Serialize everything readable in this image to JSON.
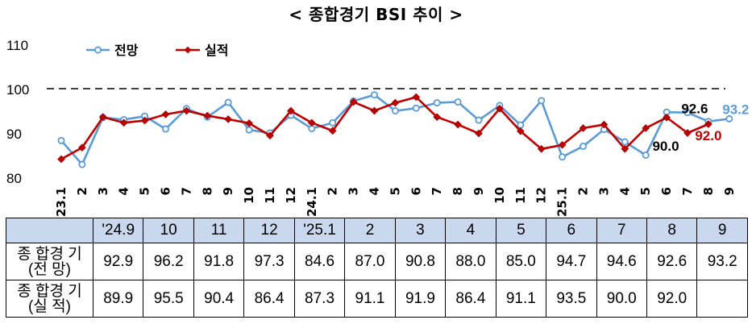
{
  "title": "< 종합경기 BSI 추이 >",
  "chart_data": {
    "type": "line",
    "ylim": [
      80,
      110
    ],
    "yticks": [
      80,
      90,
      100,
      110
    ],
    "reference_line": 100,
    "x_labels": [
      "'23.1",
      "2",
      "3",
      "4",
      "5",
      "6",
      "7",
      "8",
      "9",
      "10",
      "11",
      "12",
      "24.1",
      "2",
      "3",
      "4",
      "5",
      "6",
      "7",
      "8",
      "9",
      "10",
      "11",
      "12",
      "25.1",
      "2",
      "3",
      "4",
      "5",
      "6",
      "7",
      "8",
      "9"
    ],
    "series": [
      {
        "name": "전망",
        "color": "#5b9bd5",
        "values": [
          88.3,
          82.9,
          93.5,
          93.0,
          93.8,
          90.9,
          95.5,
          93.6,
          96.9,
          90.7,
          90.0,
          94.0,
          91.0,
          92.3,
          97.2,
          98.6,
          95.0,
          95.6,
          96.8,
          97.0,
          92.9,
          96.2,
          91.8,
          97.3,
          84.6,
          87.0,
          90.8,
          88.0,
          85.0,
          94.7,
          94.6,
          92.6,
          93.2
        ]
      },
      {
        "name": "실적",
        "color": "#c00000",
        "values": [
          84.1,
          86.7,
          93.6,
          92.3,
          92.8,
          94.2,
          95.0,
          93.9,
          93.1,
          92.2,
          89.4,
          95.0,
          92.3,
          90.5,
          97.0,
          95.0,
          96.8,
          98.1,
          93.6,
          91.9,
          89.9,
          95.5,
          90.4,
          86.4,
          87.3,
          91.1,
          91.9,
          86.4,
          91.1,
          93.5,
          90.0,
          92.0
        ]
      }
    ],
    "annotations": [
      {
        "text": "92.6",
        "series": 0,
        "index": 31
      },
      {
        "text": "93.2",
        "series": 0,
        "index": 32
      },
      {
        "text": "90.0",
        "series": 1,
        "index": 30
      },
      {
        "text": "92.0",
        "series": 1,
        "index": 31
      }
    ]
  },
  "table": {
    "headers": [
      "'24.9",
      "10",
      "11",
      "12",
      "'25.1",
      "2",
      "3",
      "4",
      "5",
      "6",
      "7",
      "8",
      "9"
    ],
    "rows": [
      {
        "label_line1": "종 합경 기",
        "label_line2": "(전 망)",
        "values": [
          "92.9",
          "96.2",
          "91.8",
          "97.3",
          "84.6",
          "87.0",
          "90.8",
          "88.0",
          "85.0",
          "94.7",
          "94.6",
          "92.6",
          "93.2"
        ]
      },
      {
        "label_line1": "종 합경 기",
        "label_line2": "(실 적)",
        "values": [
          "89.9",
          "95.5",
          "90.4",
          "86.4",
          "87.3",
          "91.1",
          "91.9",
          "86.4",
          "91.1",
          "93.5",
          "90.0",
          "92.0",
          ""
        ]
      }
    ]
  }
}
